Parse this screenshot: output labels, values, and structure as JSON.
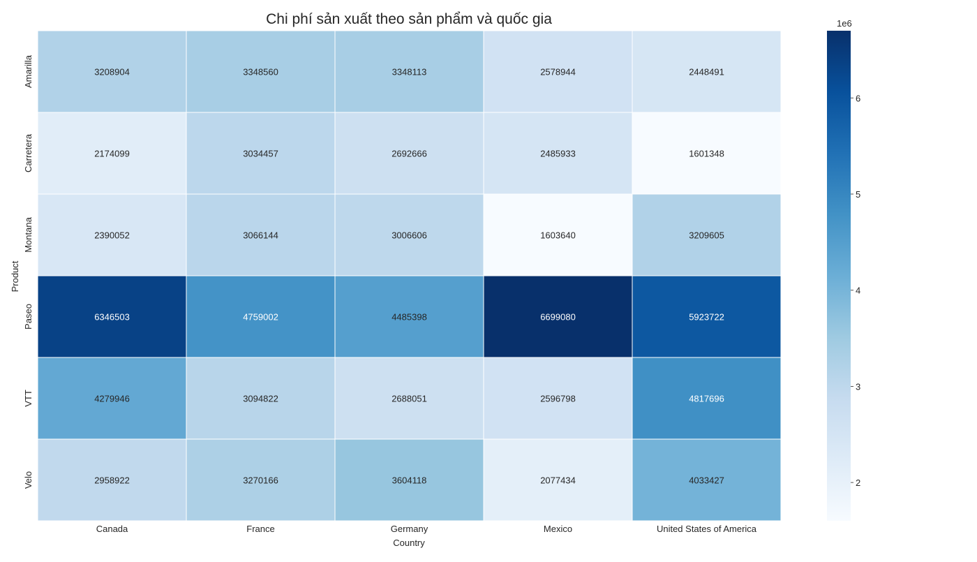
{
  "chart_data": {
    "type": "heatmap",
    "title": "Chi phí sản xuất theo sản phẩm và quốc gia",
    "xlabel": "Country",
    "ylabel": "Product",
    "x_categories": [
      "Canada",
      "France",
      "Germany",
      "Mexico",
      "United States of America"
    ],
    "y_categories": [
      "Amarilla",
      "Carretera",
      "Montana",
      "Paseo",
      "VTT",
      "Velo"
    ],
    "values": [
      [
        3208904,
        3348560,
        3348113,
        2578944,
        2448491
      ],
      [
        2174099,
        3034457,
        2692666,
        2485933,
        1601348
      ],
      [
        2390052,
        3066144,
        3006606,
        1603640,
        3209605
      ],
      [
        6346503,
        4759002,
        4485398,
        6699080,
        5923722
      ],
      [
        4279946,
        3094822,
        2688051,
        2596798,
        4817696
      ],
      [
        2958922,
        3270166,
        3604118,
        2077434,
        4033427
      ]
    ],
    "colormap": "Blues",
    "vmin": 1601348,
    "vmax": 6699080,
    "colorbar": {
      "ticks": [
        2,
        3,
        4,
        5,
        6
      ],
      "offset_label": "1e6",
      "scale": 1000000
    },
    "annotations": true,
    "grid": false
  }
}
